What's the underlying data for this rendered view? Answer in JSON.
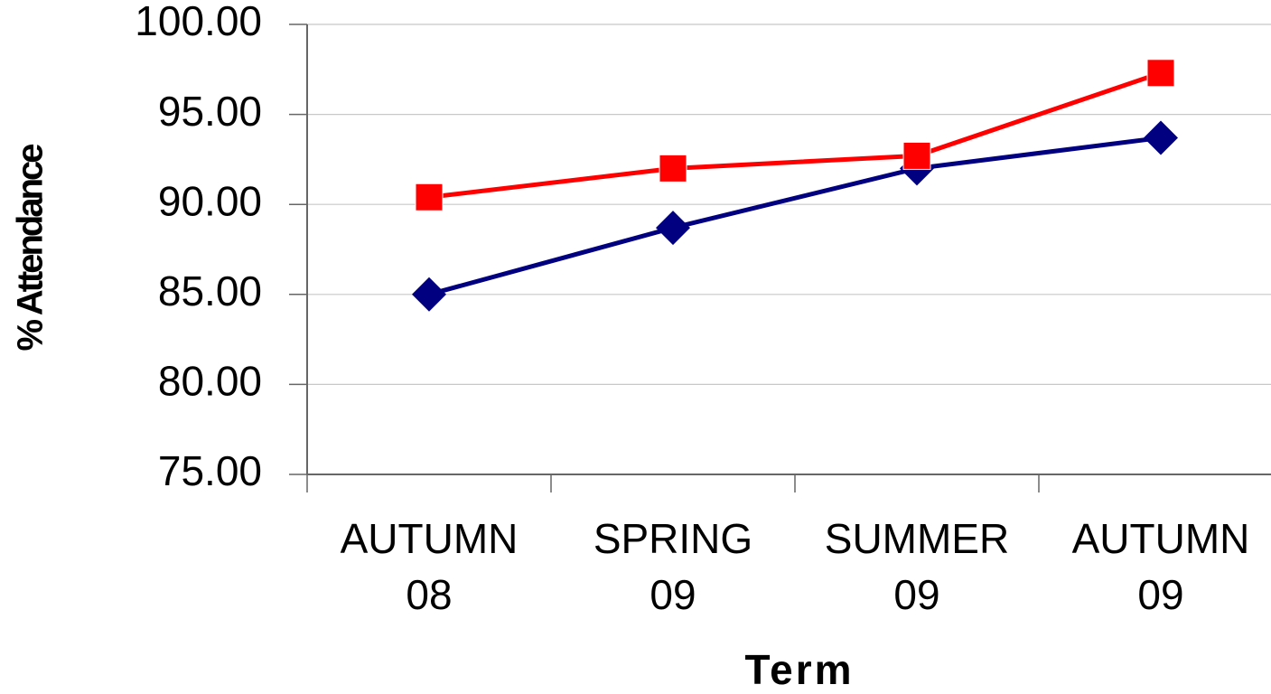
{
  "chart_data": {
    "type": "line",
    "x_label": "Term",
    "y_label": "% Attendance",
    "categories": [
      "AUTUMN 08",
      "SPRING 09",
      "SUMMER 09",
      "AUTUMN 09"
    ],
    "series": [
      {
        "color": "#000080",
        "marker": "diamond",
        "values": [
          85.0,
          88.7,
          92.0,
          93.7
        ]
      },
      {
        "color": "#ff0000",
        "marker": "square",
        "values": [
          90.4,
          92.0,
          92.7,
          97.3
        ]
      }
    ],
    "ylim": [
      75,
      100
    ],
    "yticks": [
      {
        "value": 75,
        "label": "75.00"
      },
      {
        "value": 80,
        "label": "80.00"
      },
      {
        "value": 85,
        "label": "85.00"
      },
      {
        "value": 90,
        "label": "90.00"
      },
      {
        "value": 95,
        "label": "95.00"
      },
      {
        "value": 100,
        "label": "100.00"
      }
    ],
    "grid": true
  }
}
